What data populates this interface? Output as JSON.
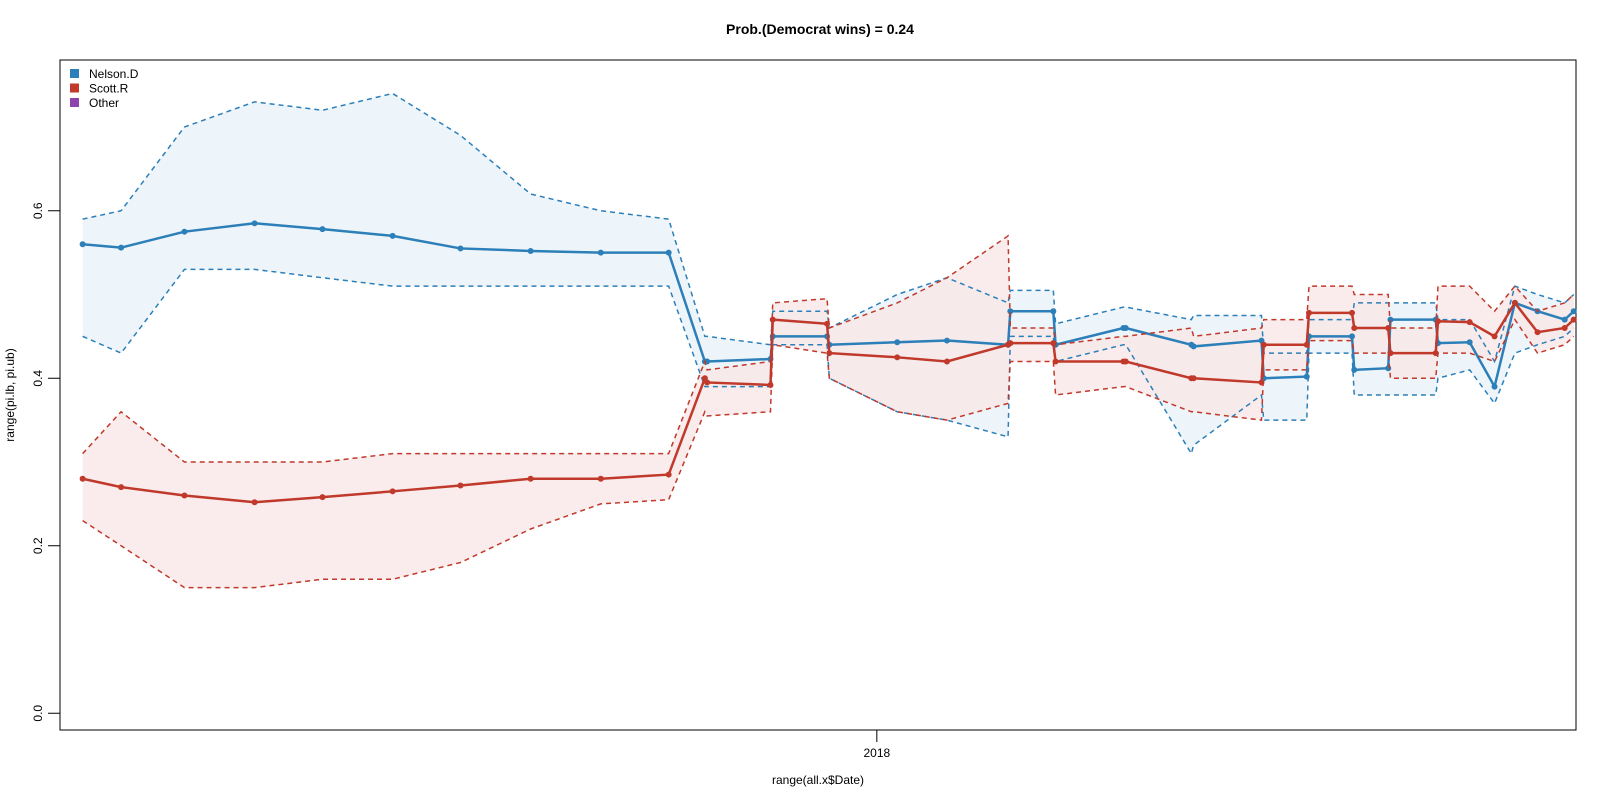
{
  "chart_data": {
    "type": "line",
    "title": "Prob.(Democrat wins) = 0.24",
    "xlabel": "range(all.x$Date)",
    "ylabel": "range(pi.lb, pi.ub)",
    "ylim": [
      -0.02,
      0.78
    ],
    "yticks": [
      0.0,
      0.2,
      0.4,
      0.6
    ],
    "yticklabels": [
      "0.0",
      "0.2",
      "0.4",
      "0.6"
    ],
    "xlim": [
      "2017-01-05",
      "2018-11-06"
    ],
    "xticks": [
      "2018-01-01"
    ],
    "xticklabels": [
      "2018"
    ],
    "grid": false,
    "legend": {
      "position": "top-left",
      "entries": [
        {
          "label": "Nelson.D",
          "color": "#2C7FB8"
        },
        {
          "label": "Scott.R",
          "color": "#C0392B"
        },
        {
          "label": "Other",
          "color": "#8E44AD"
        }
      ]
    },
    "series": [
      {
        "name": "Nelson.D",
        "color": "#2C7FB8",
        "fill": "#E8F1F8",
        "x": [
          "2017-01-15",
          "2017-02-01",
          "2017-03-01",
          "2017-04-01",
          "2017-05-01",
          "2017-06-01",
          "2017-07-01",
          "2017-08-01",
          "2017-09-01",
          "2017-10-01",
          "2017-10-17",
          "2017-10-18",
          "2017-11-15",
          "2017-11-16",
          "2017-12-10",
          "2017-12-11",
          "2018-01-10",
          "2018-02-01",
          "2018-02-28",
          "2018-03-01",
          "2018-03-20",
          "2018-03-21",
          "2018-04-20",
          "2018-04-21",
          "2018-05-20",
          "2018-05-21",
          "2018-06-20",
          "2018-06-21",
          "2018-07-10",
          "2018-07-11",
          "2018-07-30",
          "2018-07-31",
          "2018-08-15",
          "2018-08-16",
          "2018-09-05",
          "2018-09-06",
          "2018-09-20",
          "2018-10-01",
          "2018-10-10",
          "2018-10-20",
          "2018-11-01",
          "2018-11-05"
        ],
        "values": [
          0.56,
          0.556,
          0.575,
          0.585,
          0.578,
          0.57,
          0.555,
          0.552,
          0.55,
          0.55,
          0.42,
          0.42,
          0.423,
          0.45,
          0.45,
          0.44,
          0.443,
          0.445,
          0.44,
          0.48,
          0.48,
          0.44,
          0.46,
          0.46,
          0.44,
          0.438,
          0.445,
          0.4,
          0.402,
          0.45,
          0.45,
          0.41,
          0.412,
          0.47,
          0.47,
          0.442,
          0.443,
          0.39,
          0.49,
          0.48,
          0.47,
          0.48
        ],
        "upper": [
          0.59,
          0.6,
          0.7,
          0.73,
          0.72,
          0.74,
          0.69,
          0.62,
          0.6,
          0.59,
          0.45,
          0.45,
          0.44,
          0.48,
          0.48,
          0.46,
          0.5,
          0.52,
          0.49,
          0.505,
          0.505,
          0.465,
          0.485,
          0.485,
          0.47,
          0.475,
          0.475,
          0.43,
          0.43,
          0.47,
          0.47,
          0.49,
          0.49,
          0.49,
          0.49,
          0.47,
          0.47,
          0.42,
          0.51,
          0.5,
          0.49,
          0.5
        ],
        "lower": [
          0.45,
          0.43,
          0.53,
          0.53,
          0.52,
          0.51,
          0.51,
          0.51,
          0.51,
          0.51,
          0.39,
          0.39,
          0.39,
          0.44,
          0.44,
          0.4,
          0.36,
          0.35,
          0.33,
          0.45,
          0.45,
          0.42,
          0.44,
          0.44,
          0.31,
          0.32,
          0.38,
          0.35,
          0.35,
          0.43,
          0.43,
          0.38,
          0.38,
          0.38,
          0.38,
          0.4,
          0.41,
          0.37,
          0.43,
          0.44,
          0.45,
          0.46
        ]
      },
      {
        "name": "Scott.R",
        "color": "#C0392B",
        "fill": "#F8E6E5",
        "x": [
          "2017-01-15",
          "2017-02-01",
          "2017-03-01",
          "2017-04-01",
          "2017-05-01",
          "2017-06-01",
          "2017-07-01",
          "2017-08-01",
          "2017-09-01",
          "2017-10-01",
          "2017-10-17",
          "2017-10-18",
          "2017-11-15",
          "2017-11-16",
          "2017-12-10",
          "2017-12-11",
          "2018-01-10",
          "2018-02-01",
          "2018-02-28",
          "2018-03-01",
          "2018-03-20",
          "2018-03-21",
          "2018-04-20",
          "2018-04-21",
          "2018-05-20",
          "2018-05-21",
          "2018-06-20",
          "2018-06-21",
          "2018-07-10",
          "2018-07-11",
          "2018-07-30",
          "2018-07-31",
          "2018-08-15",
          "2018-08-16",
          "2018-09-05",
          "2018-09-06",
          "2018-09-20",
          "2018-10-01",
          "2018-10-10",
          "2018-10-20",
          "2018-11-01",
          "2018-11-05"
        ],
        "values": [
          0.28,
          0.27,
          0.26,
          0.252,
          0.258,
          0.265,
          0.272,
          0.28,
          0.28,
          0.285,
          0.4,
          0.395,
          0.392,
          0.47,
          0.465,
          0.43,
          0.425,
          0.42,
          0.44,
          0.442,
          0.442,
          0.42,
          0.42,
          0.42,
          0.4,
          0.4,
          0.395,
          0.44,
          0.44,
          0.478,
          0.478,
          0.46,
          0.46,
          0.43,
          0.43,
          0.468,
          0.467,
          0.45,
          0.49,
          0.455,
          0.46,
          0.47
        ],
        "upper": [
          0.31,
          0.36,
          0.3,
          0.3,
          0.3,
          0.31,
          0.31,
          0.31,
          0.31,
          0.31,
          0.42,
          0.41,
          0.42,
          0.49,
          0.495,
          0.46,
          0.49,
          0.52,
          0.57,
          0.46,
          0.46,
          0.44,
          0.45,
          0.45,
          0.46,
          0.45,
          0.46,
          0.47,
          0.47,
          0.51,
          0.51,
          0.5,
          0.5,
          0.46,
          0.46,
          0.51,
          0.51,
          0.48,
          0.51,
          0.48,
          0.49,
          0.5
        ],
        "lower": [
          0.23,
          0.2,
          0.15,
          0.15,
          0.16,
          0.16,
          0.18,
          0.22,
          0.25,
          0.255,
          0.36,
          0.355,
          0.36,
          0.44,
          0.43,
          0.4,
          0.36,
          0.35,
          0.37,
          0.42,
          0.42,
          0.38,
          0.39,
          0.39,
          0.36,
          0.36,
          0.35,
          0.41,
          0.41,
          0.445,
          0.445,
          0.43,
          0.43,
          0.4,
          0.4,
          0.43,
          0.43,
          0.42,
          0.47,
          0.43,
          0.44,
          0.45
        ]
      }
    ]
  }
}
